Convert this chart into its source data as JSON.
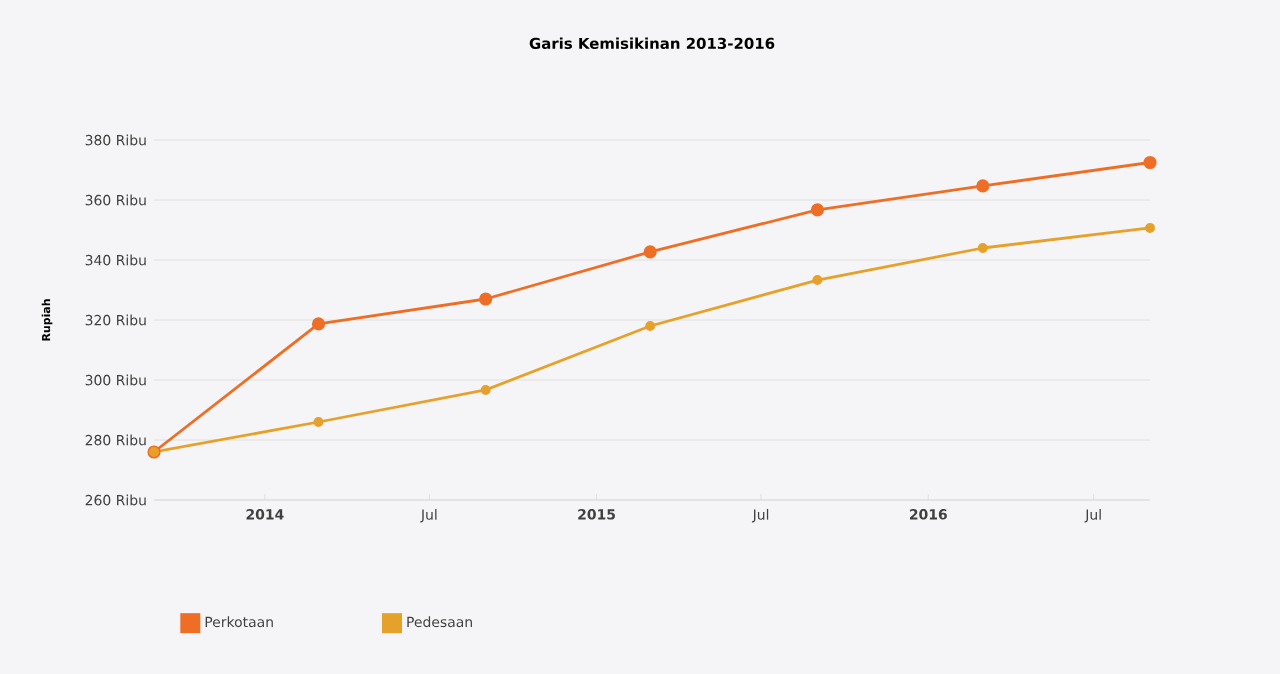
{
  "chart_data": {
    "type": "line",
    "title": "Garis Kemisikinan 2013-2016",
    "ylabel": "Rupiah",
    "x": [
      "2013-09",
      "2014-03",
      "2014-09",
      "2015-03",
      "2015-09",
      "2016-03",
      "2016-09"
    ],
    "series": [
      {
        "name": "Perkotaan",
        "color": "#ee6e25",
        "values": [
          276,
          318.7,
          327,
          342.7,
          356.7,
          364.7,
          372.5
        ]
      },
      {
        "name": "Pedesaan",
        "color": "#e6a12b",
        "values": [
          276,
          286,
          296.7,
          318,
          333.3,
          344,
          350.7
        ]
      }
    ],
    "xlim": [
      "2013-09",
      "2016-09"
    ],
    "xticks": [
      {
        "value": "2014-01",
        "label": "2014"
      },
      {
        "value": "2014-07",
        "label": "Jul"
      },
      {
        "value": "2015-01",
        "label": "2015"
      },
      {
        "value": "2015-07",
        "label": "Jul"
      },
      {
        "value": "2016-01",
        "label": "2016"
      },
      {
        "value": "2016-07",
        "label": "Jul"
      }
    ],
    "ylim": [
      260,
      380
    ],
    "yticks": [
      {
        "value": 260,
        "label": "260 Ribu"
      },
      {
        "value": 280,
        "label": "280 Ribu"
      },
      {
        "value": 300,
        "label": "300 Ribu"
      },
      {
        "value": 320,
        "label": "320 Ribu"
      },
      {
        "value": 340,
        "label": "340 Ribu"
      },
      {
        "value": 360,
        "label": "360 Ribu"
      },
      {
        "value": 380,
        "label": "380 Ribu"
      }
    ],
    "grid": "y",
    "legend": "bottom left",
    "marker": "circle",
    "line_style": "solid"
  }
}
